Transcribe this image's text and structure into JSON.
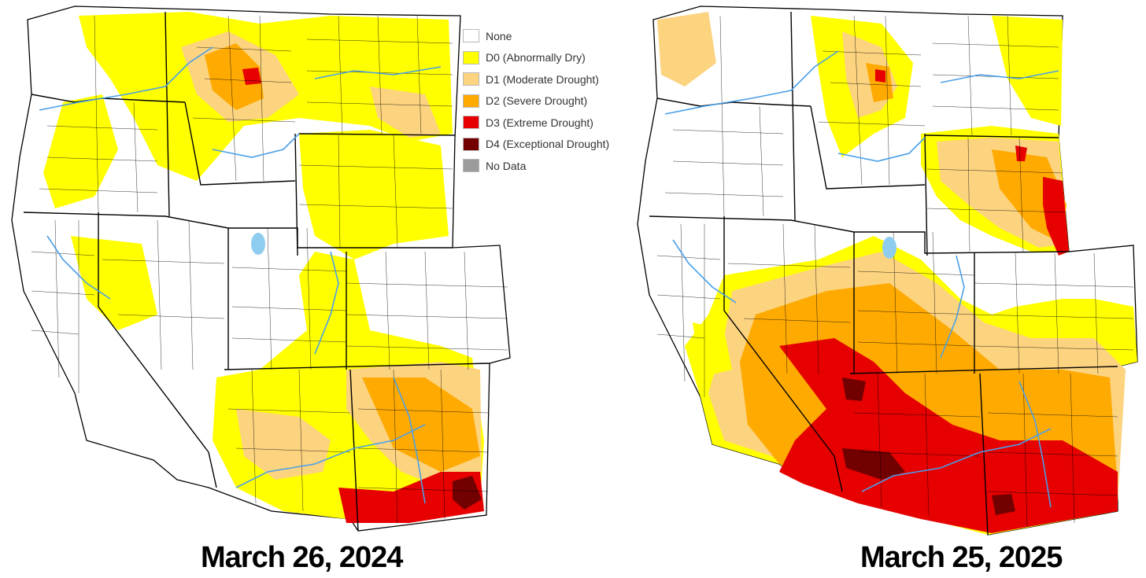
{
  "legend": {
    "items": [
      {
        "label": "None",
        "color": "#ffffff"
      },
      {
        "label": "D0 (Abnormally Dry)",
        "color": "#ffff00"
      },
      {
        "label": "D1 (Moderate Drought)",
        "color": "#fcd37f"
      },
      {
        "label": "D2 (Severe Drought)",
        "color": "#ffaa00"
      },
      {
        "label": "D3 (Extreme Drought)",
        "color": "#e60000"
      },
      {
        "label": "D4 (Exceptional Drought)",
        "color": "#730000"
      },
      {
        "label": "No Data",
        "color": "#9b9b9b"
      }
    ]
  },
  "maps": [
    {
      "date_label": "March 26, 2024"
    },
    {
      "date_label": "March 25, 2025"
    }
  ],
  "colors": {
    "river": "#4a9fe8",
    "border": "#000000",
    "county": "#000000"
  }
}
